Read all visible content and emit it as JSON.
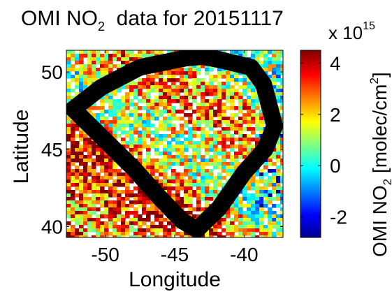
{
  "figure": {
    "title_main": "OMI NO",
    "title_sub": "2",
    "title_rest": "  data for 20151117"
  },
  "chart_data": {
    "type": "heatmap",
    "title": "OMI NO2 data for 20151117",
    "xlabel": "Longitude",
    "ylabel": "Latitude",
    "xlim": [
      -52.8,
      -37.2
    ],
    "ylim": [
      39.3,
      51.4
    ],
    "xticks": [
      -50,
      -45,
      -40
    ],
    "yticks": [
      40,
      45,
      50
    ],
    "grid": false,
    "colorbar": {
      "label_main": "OMI NO",
      "label_sub": "2",
      "label_rest": " [molec/cm",
      "label_sup": "2",
      "label_end": "]",
      "multiplier_base": "x 10",
      "multiplier_exp": "15",
      "range": [
        -2.8,
        4.5
      ],
      "ticks": [
        -2,
        0,
        2,
        4
      ],
      "colormap": "jet",
      "colors": [
        "#00008f",
        "#0000ff",
        "#00ffff",
        "#ffff00",
        "#ff0000",
        "#800000"
      ]
    },
    "field_note_visible": false,
    "outline_polygon": {
      "color": "#000000",
      "lon": [
        -52.3,
        -50.3,
        -47.5,
        -44.2,
        -43.0,
        -41.8,
        -39.5,
        -38.6,
        -37.8,
        -38.5,
        -40.0,
        -41.8,
        -43.4,
        -44.5,
        -46.0,
        -48.0,
        -52.3
      ],
      "lat": [
        47.6,
        49.0,
        50.3,
        50.9,
        51.0,
        50.8,
        50.3,
        49.2,
        46.5,
        45.0,
        43.5,
        41.2,
        39.8,
        40.4,
        41.8,
        43.8,
        47.6
      ]
    }
  }
}
